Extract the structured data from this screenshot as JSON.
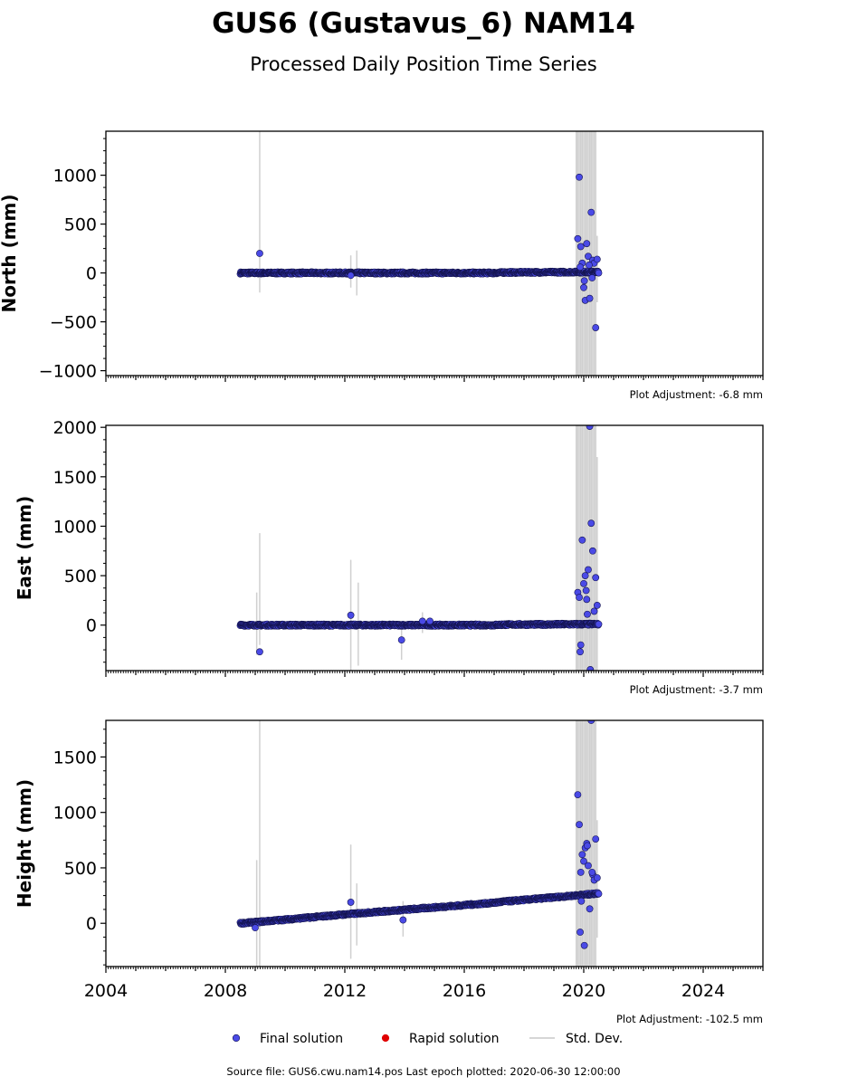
{
  "title": "GUS6 (Gustavus_6) NAM14",
  "subtitle": "Processed Daily Position Time Series",
  "colors": {
    "final": "#4a4ae6",
    "final_edge": "#141450",
    "rapid": "#e00000",
    "stddev": "#c8c8c8",
    "axis": "#000000"
  },
  "legend": {
    "final_label": "Final solution",
    "rapid_label": "Rapid solution",
    "stddev_label": "Std. Dev."
  },
  "footer": "Source file: GUS6.cwu.nam14.pos  Last epoch plotted: 2020-06-30 12:00:00",
  "chart_data": [
    {
      "type": "scatter",
      "name": "north",
      "ylabel": "North (mm)",
      "adjustment": "Plot Adjustment: -6.8 mm",
      "xlim": [
        2004,
        2026
      ],
      "ylim": [
        -1050,
        1450
      ],
      "yticks": [
        -1000,
        -500,
        0,
        500,
        1000
      ],
      "ytick_labels": [
        "−1000",
        "−500",
        "0",
        "500",
        "1000"
      ],
      "trend": [
        [
          2008.5,
          0
        ],
        [
          2017.0,
          0
        ],
        [
          2017.3,
          5
        ],
        [
          2020.5,
          10
        ]
      ],
      "outliers": [
        [
          2009.15,
          200
        ],
        [
          2012.2,
          -25
        ],
        [
          2019.8,
          350
        ],
        [
          2019.85,
          980
        ],
        [
          2019.9,
          270
        ],
        [
          2019.95,
          100
        ],
        [
          2020.0,
          -150
        ],
        [
          2020.05,
          -280
        ],
        [
          2020.1,
          300
        ],
        [
          2020.15,
          170
        ],
        [
          2020.2,
          -260
        ],
        [
          2020.25,
          620
        ],
        [
          2020.3,
          130
        ],
        [
          2020.35,
          100
        ],
        [
          2020.4,
          -560
        ],
        [
          2020.45,
          140
        ],
        [
          2019.88,
          60
        ],
        [
          2020.02,
          -80
        ],
        [
          2020.18,
          80
        ],
        [
          2020.28,
          -50
        ]
      ],
      "stddev_bars": [
        [
          2009.15,
          -200,
          1450
        ],
        [
          2012.2,
          -150,
          180
        ],
        [
          2012.4,
          -230,
          230
        ],
        [
          2019.75,
          -1050,
          1450
        ],
        [
          2019.8,
          -1050,
          1450
        ],
        [
          2019.85,
          -1050,
          1450
        ],
        [
          2019.9,
          -1050,
          1450
        ],
        [
          2019.95,
          -1050,
          1450
        ],
        [
          2020.0,
          -1050,
          1450
        ],
        [
          2020.05,
          -1050,
          1450
        ],
        [
          2020.1,
          -1050,
          1450
        ],
        [
          2020.15,
          -1050,
          1450
        ],
        [
          2020.2,
          -1050,
          1450
        ],
        [
          2020.25,
          -1050,
          1450
        ],
        [
          2020.3,
          -1050,
          1450
        ],
        [
          2020.35,
          -1050,
          1450
        ],
        [
          2020.4,
          -1050,
          1450
        ],
        [
          2020.45,
          -300,
          380
        ]
      ]
    },
    {
      "type": "scatter",
      "name": "east",
      "ylabel": "East (mm)",
      "adjustment": "Plot Adjustment: -3.7 mm",
      "xlim": [
        2004,
        2026
      ],
      "ylim": [
        -460,
        2020
      ],
      "yticks": [
        0,
        500,
        1000,
        1500,
        2000
      ],
      "ytick_labels": [
        "0",
        "500",
        "1000",
        "1500",
        "2000"
      ],
      "trend": [
        [
          2008.5,
          0
        ],
        [
          2017.0,
          0
        ],
        [
          2017.3,
          5
        ],
        [
          2020.5,
          10
        ]
      ],
      "outliers": [
        [
          2009.15,
          -270
        ],
        [
          2012.2,
          100
        ],
        [
          2013.9,
          -150
        ],
        [
          2014.6,
          40
        ],
        [
          2014.85,
          40
        ],
        [
          2019.8,
          330
        ],
        [
          2019.85,
          280
        ],
        [
          2019.9,
          -200
        ],
        [
          2019.95,
          860
        ],
        [
          2020.0,
          420
        ],
        [
          2020.05,
          500
        ],
        [
          2020.1,
          260
        ],
        [
          2020.15,
          560
        ],
        [
          2020.2,
          2010
        ],
        [
          2020.25,
          1030
        ],
        [
          2020.3,
          750
        ],
        [
          2020.35,
          140
        ],
        [
          2020.4,
          480
        ],
        [
          2020.45,
          200
        ],
        [
          2019.88,
          -270
        ],
        [
          2020.08,
          350
        ],
        [
          2020.22,
          -450
        ],
        [
          2020.12,
          110
        ]
      ],
      "stddev_bars": [
        [
          2009.05,
          -300,
          330
        ],
        [
          2009.15,
          -200,
          930
        ],
        [
          2012.2,
          -460,
          660
        ],
        [
          2012.45,
          -410,
          430
        ],
        [
          2013.9,
          -350,
          20
        ],
        [
          2014.6,
          -80,
          130
        ],
        [
          2019.75,
          -460,
          2020
        ],
        [
          2019.8,
          -460,
          2020
        ],
        [
          2019.85,
          -460,
          2020
        ],
        [
          2019.9,
          -460,
          2020
        ],
        [
          2019.95,
          -460,
          2020
        ],
        [
          2020.0,
          -460,
          2020
        ],
        [
          2020.05,
          -460,
          2020
        ],
        [
          2020.1,
          -460,
          2020
        ],
        [
          2020.15,
          -460,
          2020
        ],
        [
          2020.2,
          -460,
          2020
        ],
        [
          2020.25,
          -460,
          2020
        ],
        [
          2020.3,
          -460,
          2020
        ],
        [
          2020.35,
          -460,
          2020
        ],
        [
          2020.4,
          -460,
          2020
        ],
        [
          2020.45,
          -460,
          1700
        ]
      ]
    },
    {
      "type": "scatter",
      "name": "height",
      "ylabel": "Height (mm)",
      "adjustment": "Plot Adjustment: -102.5 mm",
      "xlim": [
        2004,
        2026
      ],
      "ylim": [
        -390,
        1830
      ],
      "yticks": [
        0,
        500,
        1000,
        1500
      ],
      "ytick_labels": [
        "0",
        "500",
        "1000",
        "1500"
      ],
      "xticks": [
        2004,
        2008,
        2012,
        2016,
        2020,
        2024
      ],
      "xtick_labels": [
        "2004",
        "2008",
        "2012",
        "2016",
        "2020",
        "2024"
      ],
      "trend": [
        [
          2008.5,
          0
        ],
        [
          2009.0,
          10
        ],
        [
          2012.0,
          80
        ],
        [
          2017.0,
          185
        ],
        [
          2017.3,
          195
        ],
        [
          2019.7,
          250
        ],
        [
          2020.5,
          270
        ]
      ],
      "outliers": [
        [
          2009.0,
          -40
        ],
        [
          2012.2,
          190
        ],
        [
          2013.95,
          30
        ],
        [
          2019.8,
          1160
        ],
        [
          2019.85,
          890
        ],
        [
          2019.9,
          460
        ],
        [
          2019.95,
          620
        ],
        [
          2020.0,
          560
        ],
        [
          2020.05,
          680
        ],
        [
          2020.1,
          720
        ],
        [
          2020.15,
          520
        ],
        [
          2020.2,
          130
        ],
        [
          2020.25,
          1830
        ],
        [
          2020.3,
          440
        ],
        [
          2020.35,
          390
        ],
        [
          2020.4,
          760
        ],
        [
          2020.45,
          410
        ],
        [
          2019.88,
          -80
        ],
        [
          2020.02,
          -200
        ],
        [
          2020.12,
          700
        ],
        [
          2020.28,
          460
        ],
        [
          2019.92,
          200
        ]
      ],
      "stddev_bars": [
        [
          2009.05,
          -390,
          570
        ],
        [
          2009.15,
          -390,
          1830
        ],
        [
          2012.2,
          -320,
          710
        ],
        [
          2012.4,
          -200,
          360
        ],
        [
          2013.95,
          -120,
          200
        ],
        [
          2019.75,
          -390,
          1830
        ],
        [
          2019.8,
          -390,
          1830
        ],
        [
          2019.85,
          -390,
          1830
        ],
        [
          2019.9,
          -390,
          1830
        ],
        [
          2019.95,
          -390,
          1830
        ],
        [
          2020.0,
          -390,
          1830
        ],
        [
          2020.05,
          -390,
          1830
        ],
        [
          2020.1,
          -390,
          1830
        ],
        [
          2020.15,
          -390,
          1830
        ],
        [
          2020.2,
          -390,
          1830
        ],
        [
          2020.25,
          -390,
          1830
        ],
        [
          2020.3,
          -390,
          1830
        ],
        [
          2020.35,
          -390,
          1830
        ],
        [
          2020.4,
          -390,
          1830
        ],
        [
          2020.45,
          -130,
          930
        ]
      ]
    }
  ]
}
